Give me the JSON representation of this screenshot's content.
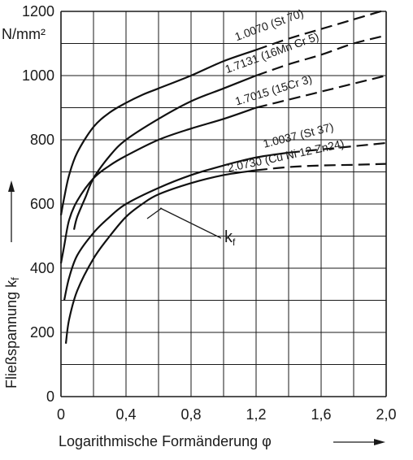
{
  "chart_data": {
    "type": "line",
    "title": "",
    "ylabel": "Fließspannung k",
    "ylabel_sub": "f",
    "yunit": "N/mm²",
    "xlabel": "Logarithmische Formänderung φ",
    "xlim": [
      0,
      2.0
    ],
    "ylim": [
      0,
      1200
    ],
    "grid": true,
    "x_ticks": [
      "0",
      "0,4",
      "0,8",
      "1,2",
      "1,6",
      "2,0"
    ],
    "y_ticks": [
      "0",
      "200",
      "400",
      "600",
      "800",
      "1000",
      "1200"
    ],
    "annotation": {
      "text": "k",
      "sub": "f"
    },
    "series": [
      {
        "name": "1.0070 (St 70)",
        "solid": [
          [
            0,
            565
          ],
          [
            0.02,
            620
          ],
          [
            0.05,
            690
          ],
          [
            0.1,
            760
          ],
          [
            0.2,
            840
          ],
          [
            0.3,
            885
          ],
          [
            0.4,
            915
          ],
          [
            0.5,
            940
          ],
          [
            0.6,
            960
          ],
          [
            0.8,
            1000
          ],
          [
            1.0,
            1045
          ],
          [
            1.2,
            1080
          ]
        ],
        "dashed": [
          [
            1.2,
            1080
          ],
          [
            1.4,
            1115
          ],
          [
            1.6,
            1145
          ],
          [
            1.8,
            1175
          ],
          [
            2.0,
            1205
          ]
        ]
      },
      {
        "name": "1.7131 (16Mn Cr 5)",
        "solid": [
          [
            0.08,
            520
          ],
          [
            0.1,
            560
          ],
          [
            0.15,
            620
          ],
          [
            0.2,
            680
          ],
          [
            0.3,
            750
          ],
          [
            0.4,
            800
          ],
          [
            0.6,
            865
          ],
          [
            0.8,
            920
          ],
          [
            1.0,
            960
          ],
          [
            1.2,
            1000
          ]
        ],
        "dashed": [
          [
            1.2,
            1000
          ],
          [
            1.4,
            1035
          ],
          [
            1.6,
            1065
          ],
          [
            1.8,
            1100
          ],
          [
            2.0,
            1125
          ]
        ]
      },
      {
        "name": "1.7015 (15Cr 3)",
        "solid": [
          [
            0,
            415
          ],
          [
            0.02,
            470
          ],
          [
            0.05,
            550
          ],
          [
            0.1,
            610
          ],
          [
            0.2,
            680
          ],
          [
            0.3,
            720
          ],
          [
            0.4,
            750
          ],
          [
            0.6,
            800
          ],
          [
            0.8,
            835
          ],
          [
            1.0,
            865
          ],
          [
            1.2,
            900
          ]
        ],
        "dashed": [
          [
            1.2,
            900
          ],
          [
            1.4,
            925
          ],
          [
            1.6,
            950
          ],
          [
            1.8,
            975
          ],
          [
            2.0,
            1000
          ]
        ]
      },
      {
        "name": "1.0037 (St 37)",
        "solid": [
          [
            0.02,
            300
          ],
          [
            0.05,
            370
          ],
          [
            0.1,
            440
          ],
          [
            0.2,
            510
          ],
          [
            0.3,
            560
          ],
          [
            0.4,
            600
          ],
          [
            0.6,
            650
          ],
          [
            0.8,
            690
          ],
          [
            1.0,
            720
          ],
          [
            1.2,
            745
          ],
          [
            1.4,
            760
          ]
        ],
        "dashed": [
          [
            1.4,
            760
          ],
          [
            1.6,
            770
          ],
          [
            1.8,
            780
          ],
          [
            2.0,
            790
          ]
        ]
      },
      {
        "name": "2.0730 (Cu Ni 12 Zn24)",
        "solid": [
          [
            0.03,
            165
          ],
          [
            0.05,
            240
          ],
          [
            0.1,
            330
          ],
          [
            0.2,
            430
          ],
          [
            0.3,
            500
          ],
          [
            0.4,
            560
          ],
          [
            0.5,
            600
          ],
          [
            0.6,
            630
          ],
          [
            0.8,
            665
          ],
          [
            1.0,
            690
          ],
          [
            1.2,
            705
          ]
        ],
        "dashed": [
          [
            1.2,
            705
          ],
          [
            1.4,
            715
          ],
          [
            1.6,
            720
          ],
          [
            1.8,
            722
          ],
          [
            2.0,
            725
          ]
        ]
      }
    ]
  }
}
